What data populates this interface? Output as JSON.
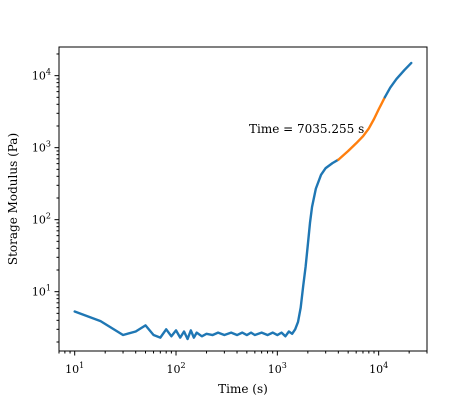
{
  "chart_data": {
    "type": "line",
    "title": "",
    "xlabel": "Time (s)",
    "ylabel": "Storage Modulus (Pa)",
    "xscale": "log",
    "yscale": "log",
    "xlim": [
      7,
      30000
    ],
    "ylim": [
      1.5,
      25000
    ],
    "x_ticks": [
      {
        "value": 10,
        "base": "10",
        "exp": "1"
      },
      {
        "value": 100,
        "base": "10",
        "exp": "2"
      },
      {
        "value": 1000,
        "base": "10",
        "exp": "3"
      },
      {
        "value": 10000,
        "base": "10",
        "exp": "4"
      }
    ],
    "y_ticks": [
      {
        "value": 10,
        "base": "10",
        "exp": "1"
      },
      {
        "value": 100,
        "base": "10",
        "exp": "2"
      },
      {
        "value": 1000,
        "base": "10",
        "exp": "3"
      },
      {
        "value": 10000,
        "base": "10",
        "exp": "4"
      }
    ],
    "grid": false,
    "annotation": "Time = 7035.255 s",
    "series": [
      {
        "color": "#1f77b4",
        "points": [
          [
            10,
            5.3
          ],
          [
            18,
            3.9
          ],
          [
            30,
            2.5
          ],
          [
            40,
            2.8
          ],
          [
            50,
            3.4
          ],
          [
            60,
            2.5
          ],
          [
            70,
            2.3
          ],
          [
            80,
            3.0
          ],
          [
            90,
            2.4
          ],
          [
            100,
            2.9
          ],
          [
            110,
            2.3
          ],
          [
            120,
            2.8
          ],
          [
            130,
            2.2
          ],
          [
            140,
            2.9
          ],
          [
            150,
            2.3
          ],
          [
            160,
            2.7
          ],
          [
            180,
            2.4
          ],
          [
            200,
            2.6
          ],
          [
            230,
            2.5
          ],
          [
            260,
            2.7
          ],
          [
            300,
            2.5
          ],
          [
            350,
            2.7
          ],
          [
            400,
            2.5
          ],
          [
            450,
            2.7
          ],
          [
            500,
            2.5
          ],
          [
            550,
            2.7
          ],
          [
            600,
            2.5
          ],
          [
            700,
            2.7
          ],
          [
            800,
            2.5
          ],
          [
            900,
            2.7
          ],
          [
            1000,
            2.5
          ],
          [
            1100,
            2.7
          ],
          [
            1200,
            2.4
          ],
          [
            1300,
            2.8
          ],
          [
            1400,
            2.6
          ],
          [
            1500,
            3.0
          ],
          [
            1600,
            3.8
          ],
          [
            1700,
            6.0
          ],
          [
            1800,
            12
          ],
          [
            1900,
            22
          ],
          [
            2000,
            45
          ],
          [
            2100,
            90
          ],
          [
            2200,
            150
          ],
          [
            2400,
            270
          ],
          [
            2700,
            420
          ],
          [
            3000,
            520
          ],
          [
            3500,
            610
          ],
          [
            4000,
            680
          ]
        ]
      },
      {
        "color": "#ff7f0e",
        "points": [
          [
            4000,
            680
          ],
          [
            5000,
            900
          ],
          [
            6000,
            1150
          ],
          [
            7035,
            1450
          ],
          [
            8000,
            1850
          ],
          [
            9000,
            2500
          ],
          [
            10000,
            3400
          ],
          [
            11500,
            5000
          ]
        ]
      },
      {
        "color": "#1f77b4",
        "points": [
          [
            11500,
            5000
          ],
          [
            13000,
            6800
          ],
          [
            15000,
            9000
          ],
          [
            18000,
            12000
          ],
          [
            21000,
            15000
          ]
        ]
      }
    ]
  }
}
